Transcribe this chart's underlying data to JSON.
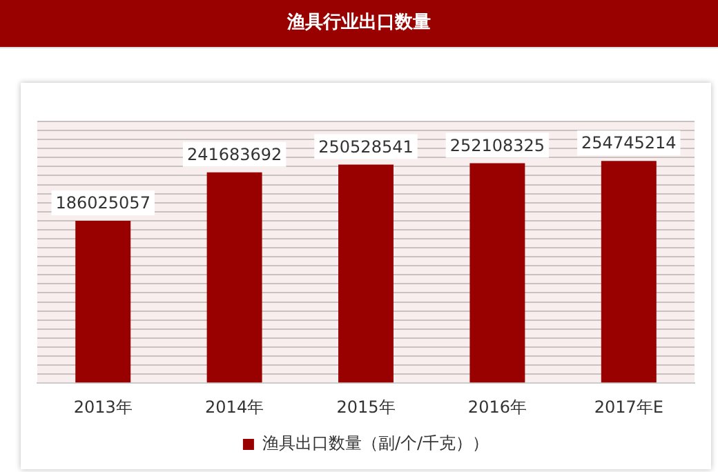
{
  "chart_data": {
    "type": "bar",
    "title": "渔具行业出口数量",
    "categories": [
      "2013年",
      "2014年",
      "2015年",
      "2016年",
      "2017年E"
    ],
    "series": [
      {
        "name": "渔具出口数量（副/个/千克））",
        "color": "#990000",
        "values": [
          186025057,
          241683692,
          250528541,
          252108325,
          254745214
        ]
      }
    ],
    "data_labels": true,
    "grid": "y",
    "legend": "bottom"
  }
}
